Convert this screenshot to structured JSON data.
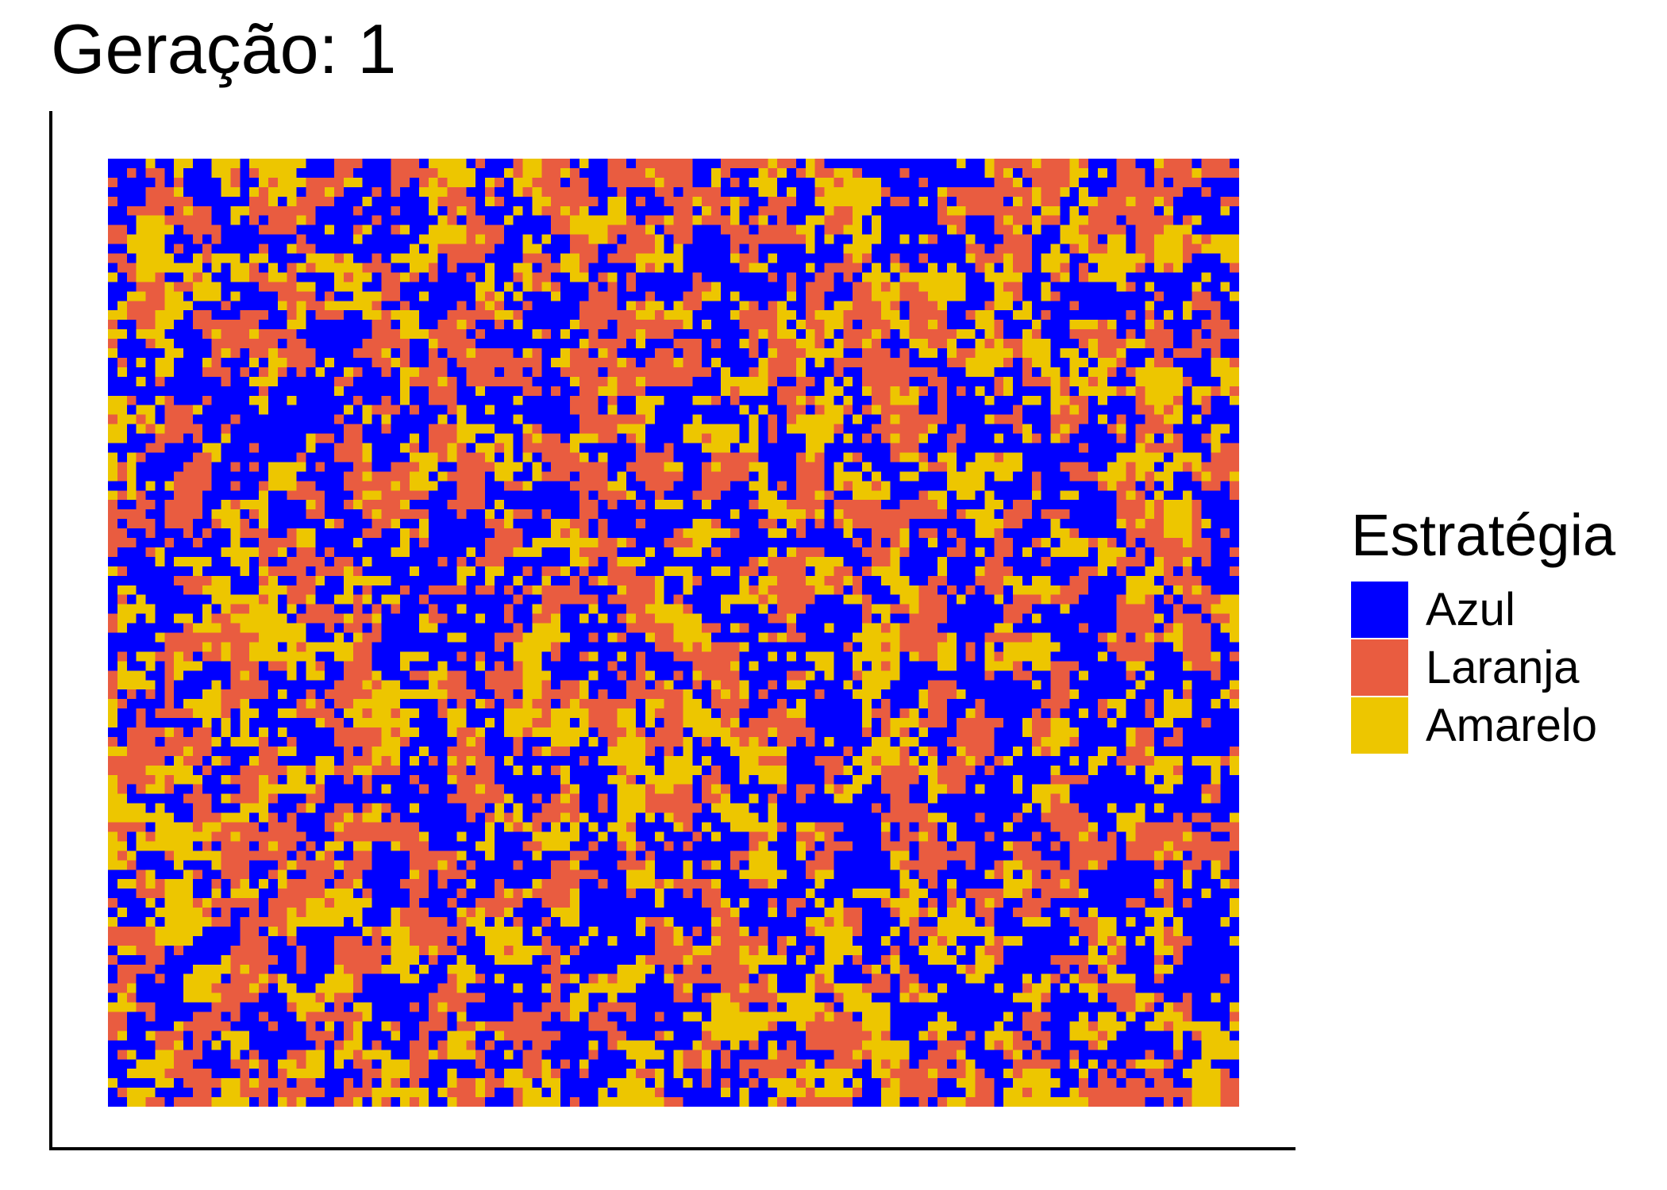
{
  "chart_data": {
    "type": "heatmap",
    "title": "Geração: 1",
    "xlabel": "",
    "ylabel": "",
    "grid": false,
    "legend": {
      "title": "Estratégia",
      "position": "right",
      "items": [
        {
          "label": "Azul",
          "color": "#0000FF"
        },
        {
          "label": "Laranja",
          "color": "#E95C40"
        },
        {
          "label": "Amarelo",
          "color": "#EDC600"
        }
      ]
    },
    "rows": 100,
    "cols": 120,
    "categories": [
      "Azul",
      "Laranja",
      "Amarelo"
    ],
    "seed": 1
  }
}
